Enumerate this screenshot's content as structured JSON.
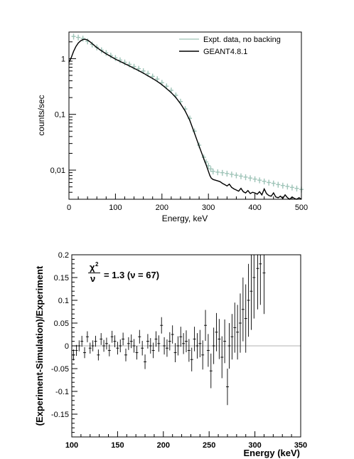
{
  "chart_data": [
    {
      "type": "line",
      "title": "",
      "xlabel": "Energy, keV",
      "ylabel": "counts/sec",
      "xlim": [
        0,
        500
      ],
      "ylim": [
        0.003,
        3
      ],
      "yscale": "log",
      "xticks": [
        0,
        100,
        200,
        300,
        400,
        500
      ],
      "xtick_labels": [
        "0",
        "100",
        "200",
        "300",
        "400",
        "500"
      ],
      "yticks": [
        0.01,
        0.1,
        1
      ],
      "ytick_labels": [
        "0,01",
        "0,1",
        "1"
      ],
      "legend_position": "top-right",
      "series": [
        {
          "name": "Expt. data, no backing",
          "color": "#9fc4b8",
          "style": "errorbar",
          "x": [
            10,
            20,
            30,
            40,
            50,
            60,
            70,
            80,
            90,
            100,
            110,
            120,
            130,
            140,
            150,
            160,
            170,
            180,
            190,
            200,
            210,
            220,
            230,
            240,
            250,
            260,
            270,
            280,
            290,
            295,
            300,
            305,
            310,
            320,
            330,
            340,
            350,
            360,
            370,
            380,
            390,
            400,
            410,
            420,
            430,
            440,
            450,
            460,
            470,
            480,
            490,
            500
          ],
          "y": [
            2.5,
            2.4,
            2.3,
            2.05,
            1.8,
            1.6,
            1.42,
            1.27,
            1.14,
            1.03,
            0.94,
            0.86,
            0.79,
            0.72,
            0.66,
            0.6,
            0.54,
            0.48,
            0.43,
            0.37,
            0.32,
            0.27,
            0.22,
            0.17,
            0.125,
            0.085,
            0.05,
            0.028,
            0.017,
            0.014,
            0.012,
            0.0105,
            0.0095,
            0.0092,
            0.009,
            0.0087,
            0.0084,
            0.0081,
            0.0078,
            0.0075,
            0.0072,
            0.0069,
            0.0066,
            0.0063,
            0.006,
            0.0058,
            0.0055,
            0.0053,
            0.0051,
            0.0049,
            0.0047,
            0.0045
          ]
        },
        {
          "name": "GEANT4.8.1",
          "color": "#000000",
          "style": "line",
          "x": [
            0,
            5,
            10,
            15,
            20,
            25,
            30,
            35,
            40,
            45,
            50,
            60,
            70,
            80,
            90,
            100,
            110,
            120,
            130,
            140,
            150,
            160,
            170,
            180,
            190,
            200,
            210,
            220,
            230,
            240,
            250,
            260,
            270,
            280,
            290,
            295,
            300,
            303,
            306,
            310,
            315,
            320,
            325,
            330,
            335,
            340,
            345,
            350,
            355,
            360,
            365,
            370,
            375,
            380,
            385,
            390,
            395,
            400,
            405,
            410,
            415,
            420,
            425,
            430,
            435,
            440,
            445,
            450,
            455,
            460,
            465,
            470,
            475,
            480,
            485,
            490,
            495,
            500
          ],
          "y": [
            0.85,
            1.05,
            1.35,
            1.65,
            1.9,
            2.08,
            2.2,
            2.22,
            2.15,
            2.02,
            1.85,
            1.58,
            1.38,
            1.22,
            1.09,
            0.98,
            0.89,
            0.81,
            0.74,
            0.67,
            0.61,
            0.55,
            0.49,
            0.44,
            0.39,
            0.34,
            0.29,
            0.245,
            0.2,
            0.155,
            0.115,
            0.078,
            0.046,
            0.027,
            0.016,
            0.0125,
            0.0095,
            0.008,
            0.0072,
            0.0068,
            0.0066,
            0.0064,
            0.0062,
            0.0058,
            0.0055,
            0.0052,
            0.0056,
            0.0049,
            0.0046,
            0.0044,
            0.0042,
            0.0047,
            0.0041,
            0.0039,
            0.0043,
            0.0038,
            0.004,
            0.0039,
            0.0037,
            0.0041,
            0.0036,
            0.0046,
            0.0038,
            0.0035,
            0.0034,
            0.0039,
            0.0033,
            0.0032,
            0.0034,
            0.0031,
            0.0036,
            0.0032,
            0.0029,
            0.0033,
            0.0031,
            0.0028,
            0.0032,
            0.003
          ]
        }
      ]
    },
    {
      "type": "scatter",
      "title": "",
      "xlabel": "Energy (keV)",
      "ylabel": "(Experiment-Simulation)/Experiment",
      "xlim": [
        100,
        350
      ],
      "ylim": [
        -0.2,
        0.2
      ],
      "xticks": [
        100,
        150,
        200,
        250,
        300,
        350
      ],
      "xtick_labels": [
        "100",
        "150",
        "200",
        "250",
        "300",
        "350"
      ],
      "yticks": [
        -0.15,
        -0.1,
        -0.05,
        0,
        0.05,
        0.1,
        0.15,
        0.2
      ],
      "ytick_labels": [
        "-0.15",
        "-0.1",
        "-0.05",
        "0",
        "0.05",
        "0.1",
        "0.15",
        "0.2"
      ],
      "annotation": {
        "numerator": "χ",
        "superscript": "2",
        "denominator": "ν",
        "text": "= 1.3 (ν = 67)"
      },
      "series": [
        {
          "color": "#000000",
          "style": "errorbar",
          "x": [
            102,
            105,
            108,
            111,
            114,
            117,
            120,
            123,
            126,
            129,
            132,
            135,
            138,
            141,
            144,
            147,
            150,
            153,
            156,
            159,
            162,
            165,
            168,
            171,
            174,
            177,
            180,
            183,
            186,
            189,
            192,
            195,
            198,
            201,
            204,
            207,
            210,
            213,
            216,
            219,
            222,
            225,
            228,
            231,
            234,
            237,
            240,
            243,
            246,
            249,
            252,
            255,
            258,
            261,
            264,
            267,
            270,
            272,
            275,
            278,
            281,
            284,
            287,
            290,
            293,
            296,
            299,
            303,
            306,
            310
          ],
          "y": [
            -0.02,
            -0.01,
            0.0,
            0.01,
            -0.015,
            0.02,
            -0.005,
            0.0,
            0.01,
            -0.02,
            0.015,
            0.0,
            0.005,
            -0.01,
            0.02,
            0.01,
            -0.005,
            0.0,
            0.015,
            -0.02,
            0.005,
            0.01,
            0.0,
            -0.015,
            0.02,
            -0.005,
            -0.035,
            0.01,
            0.0,
            -0.01,
            0.015,
            0.005,
            0.045,
            0.0,
            -0.005,
            0.01,
            0.025,
            -0.015,
            0.0,
            0.02,
            0.005,
            0.01,
            -0.01,
            -0.03,
            0.015,
            0.0,
            0.005,
            -0.02,
            0.045,
            -0.01,
            -0.055,
            0.0,
            0.03,
            0.015,
            -0.025,
            0.01,
            -0.09,
            0.0,
            0.02,
            0.04,
            0.03,
            0.05,
            0.08,
            0.06,
            0.1,
            0.12,
            0.15,
            0.17,
            0.18,
            0.16
          ],
          "err": [
            0.012,
            0.012,
            0.012,
            0.012,
            0.012,
            0.012,
            0.012,
            0.012,
            0.012,
            0.012,
            0.013,
            0.013,
            0.013,
            0.013,
            0.013,
            0.013,
            0.014,
            0.014,
            0.014,
            0.014,
            0.014,
            0.015,
            0.015,
            0.015,
            0.015,
            0.016,
            0.016,
            0.016,
            0.017,
            0.017,
            0.017,
            0.018,
            0.018,
            0.019,
            0.019,
            0.02,
            0.02,
            0.021,
            0.021,
            0.022,
            0.023,
            0.024,
            0.025,
            0.026,
            0.027,
            0.028,
            0.03,
            0.032,
            0.034,
            0.036,
            0.038,
            0.04,
            0.042,
            0.044,
            0.046,
            0.048,
            0.04,
            0.05,
            0.05,
            0.055,
            0.06,
            0.065,
            0.07,
            0.075,
            0.08,
            0.085,
            0.09,
            0.09,
            0.09,
            0.09
          ]
        }
      ]
    }
  ]
}
